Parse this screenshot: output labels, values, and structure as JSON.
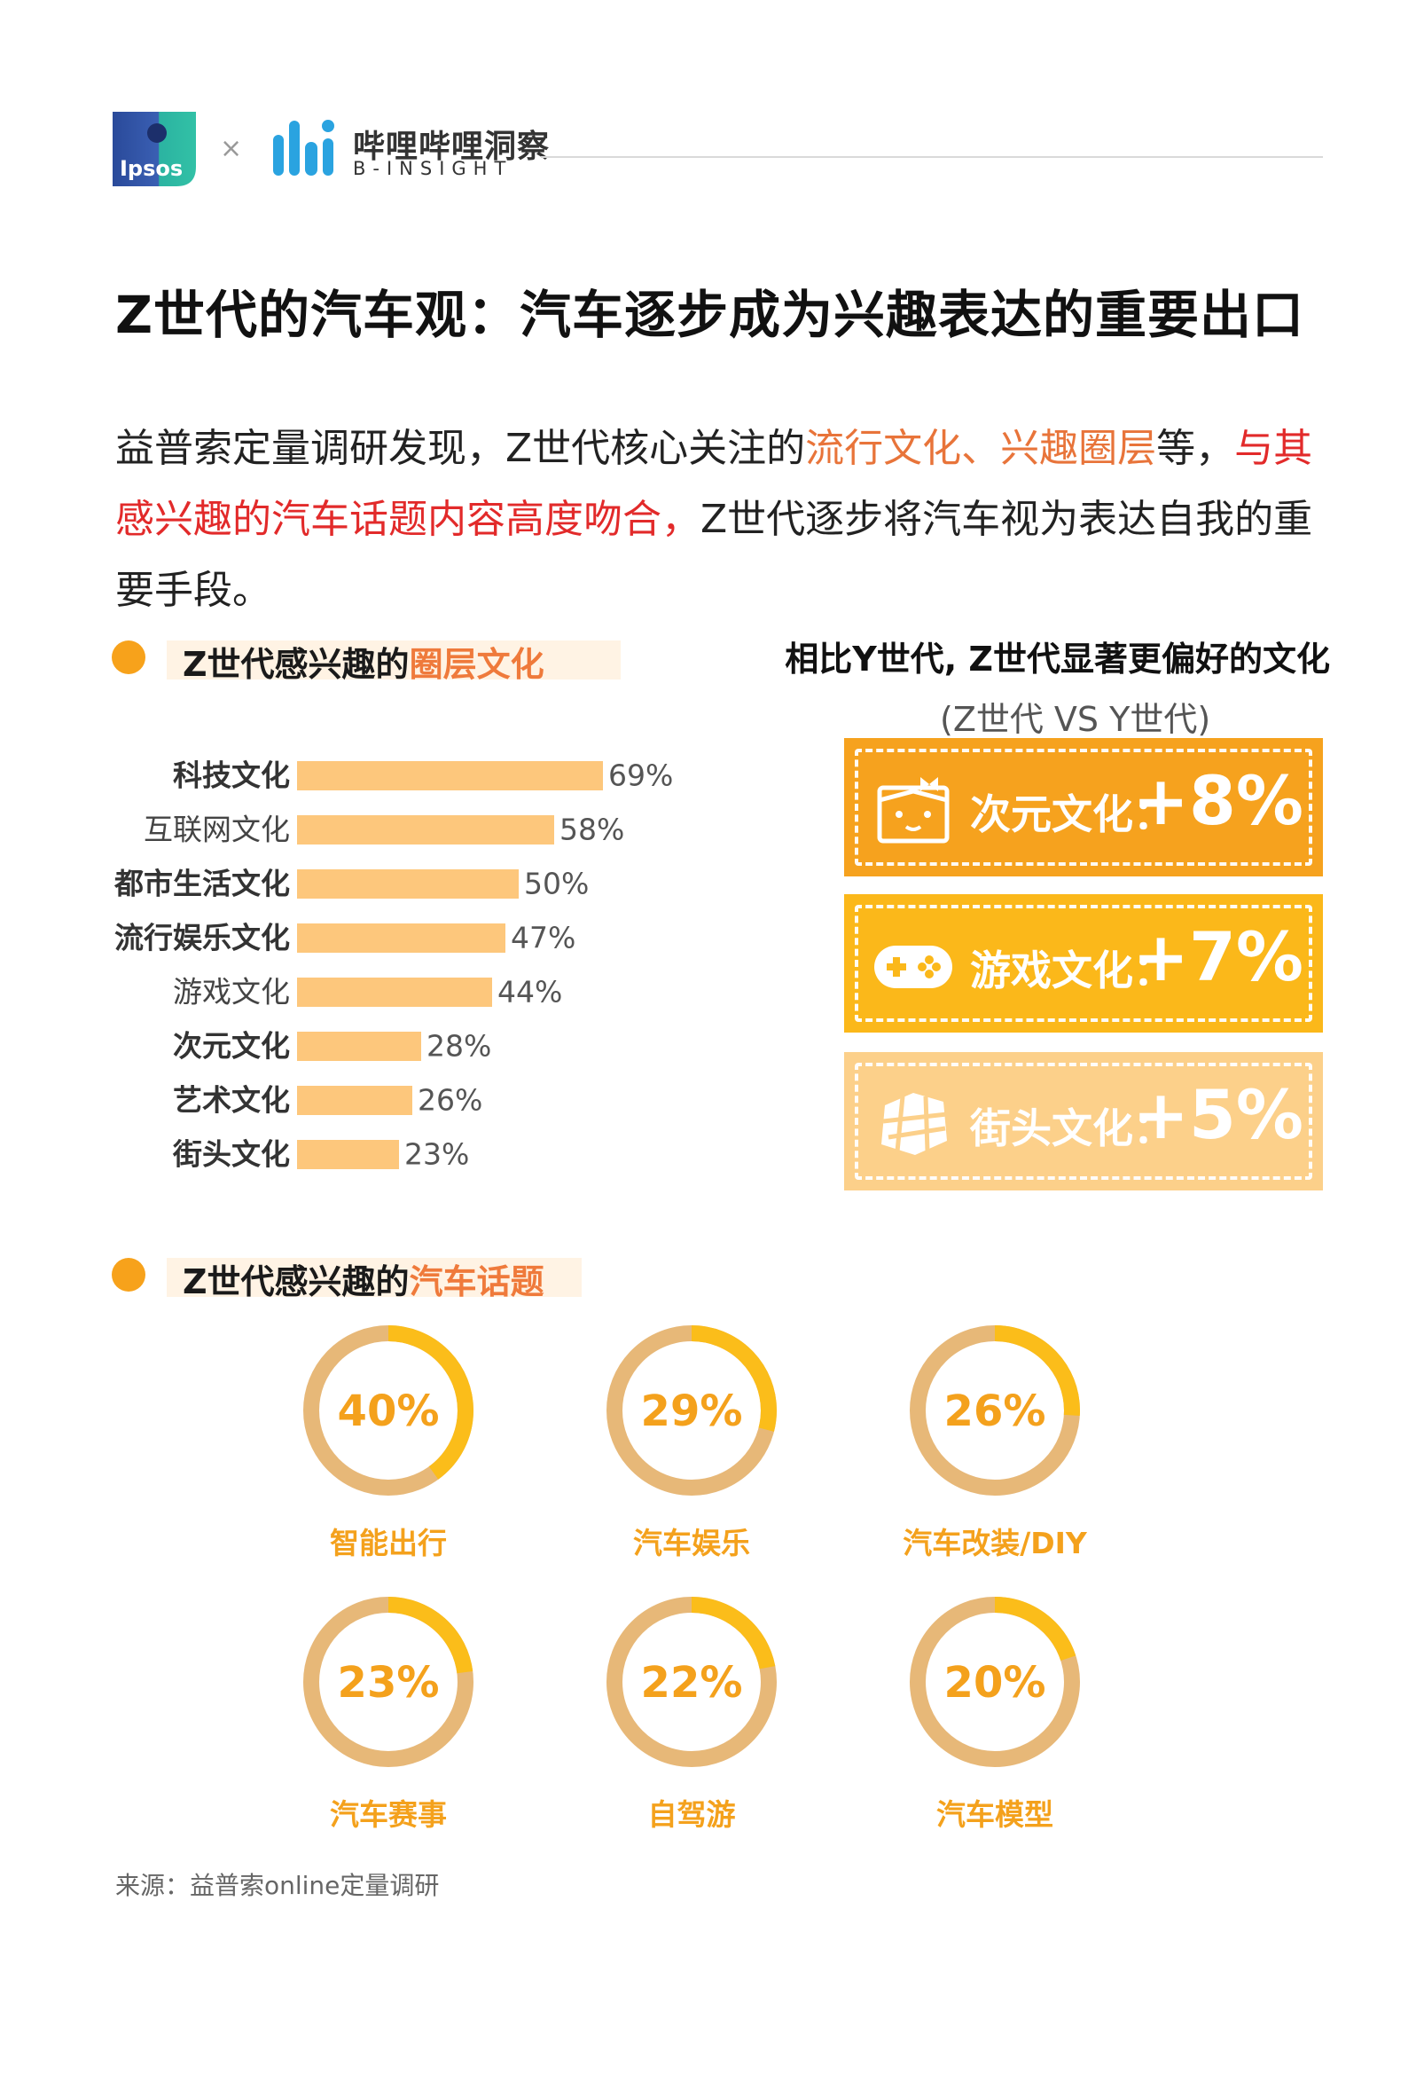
{
  "header": {
    "ipsos_logo_text": "Ipsos",
    "separator": "×",
    "bili_name_cn": "哔哩哔哩洞察",
    "bili_name_en": "B-INSIGHT"
  },
  "title": "Z世代的汽车观：汽车逐步成为兴趣表达的重要出口",
  "intro": {
    "p1": "益普索定量调研发现，Z世代核心关注的",
    "hl1": "流行文化、兴趣圈层",
    "p2": "等，",
    "hl2": "与其感兴趣的汽车话题内容高度吻合，",
    "p3": "Z世代逐步将汽车视为表达自我的重要手段。"
  },
  "section1": {
    "label_prefix": "Z世代感兴趣的",
    "label_highlight": "圈层文化"
  },
  "section2": {
    "label_prefix": "Z世代感兴趣的",
    "label_highlight": "汽车话题"
  },
  "comparison": {
    "title": "相比Y世代, Z世代显著更偏好的文化",
    "subtitle": "(Z世代 VS Y世代)",
    "items": [
      {
        "label": "次元文化：",
        "value": "+8%",
        "icon": "anime-character-icon",
        "color": "#f6a21e"
      },
      {
        "label": "游戏文化：",
        "value": "+7%",
        "icon": "gamepad-icon",
        "color": "#fbb81a"
      },
      {
        "label": "街头文化：",
        "value": "+5%",
        "icon": "street-map-icon",
        "color": "#fcd08a"
      }
    ]
  },
  "chart_data": [
    {
      "type": "bar",
      "orientation": "horizontal",
      "categories": [
        "科技文化",
        "互联网文化",
        "都市生活文化",
        "流行娱乐文化",
        "游戏文化",
        "次元文化",
        "艺术文化",
        "街头文化"
      ],
      "values": [
        69,
        58,
        50,
        47,
        44,
        28,
        26,
        23
      ],
      "value_labels": [
        "69%",
        "58%",
        "50%",
        "47%",
        "44%",
        "28%",
        "26%",
        "23%"
      ],
      "bold_categories": [
        true,
        false,
        true,
        true,
        false,
        true,
        true,
        true
      ],
      "xlim": [
        0,
        100
      ],
      "bar_color": "#fdc77c",
      "grid": false
    },
    {
      "type": "pie",
      "style": "donut",
      "labels": [
        "智能出行",
        "汽车娱乐",
        "汽车改装/DIY",
        "汽车赛事",
        "自驾游",
        "汽车模型"
      ],
      "values": [
        40,
        29,
        26,
        23,
        22,
        20
      ],
      "value_labels": [
        "40%",
        "29%",
        "26%",
        "23%",
        "22%",
        "20%"
      ],
      "fill_color": "#fbbd1a",
      "track_color": "#e7b878"
    }
  ],
  "source": "来源：益普索online定量调研"
}
